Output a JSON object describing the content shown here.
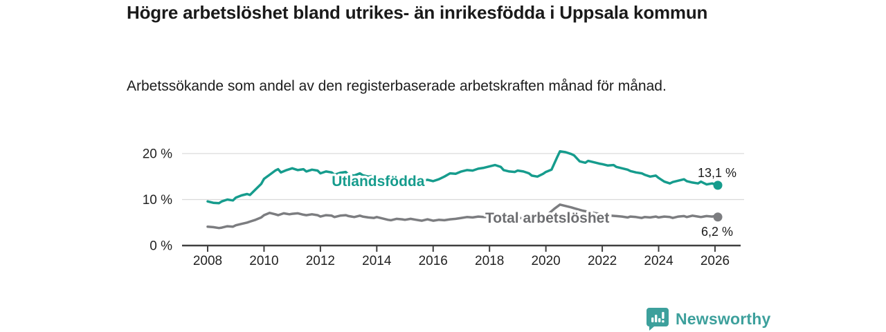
{
  "footer": {
    "brand": "Newsworthy"
  },
  "colors": {
    "accent_teal": "#169c8d",
    "line_gray": "#7c7d80",
    "label_gray": "#6d6e71",
    "brand_teal": "#3da09c",
    "axis": "#3f3f3f",
    "grid": "#d9d9d9",
    "text": "#1a1a1a"
  },
  "chart_data": {
    "type": "line",
    "title": "Högre arbetslöshet bland utrikes- än inrikesfödda i Uppsala kommun",
    "subtitle": "Arbetssökande som andel av den registerbaserade arbetskraften månad för månad.",
    "xlabel": "",
    "ylabel": "",
    "grid": "horizontal gridlines at 10% and 20%",
    "legend_position": "labels on lines",
    "x_range": [
      2007.1,
      2026.9
    ],
    "y_range": [
      0,
      21
    ],
    "x_ticks": [
      2008,
      2010,
      2012,
      2014,
      2016,
      2018,
      2020,
      2022,
      2024,
      2026
    ],
    "x_tick_labels": [
      "2008",
      "2010",
      "2012",
      "2014",
      "2016",
      "2018",
      "2020",
      "2022",
      "2024",
      "2026"
    ],
    "y_ticks": [
      0,
      10,
      20
    ],
    "y_tick_labels": [
      "0 %",
      "10 %",
      "20 %"
    ],
    "series": [
      {
        "name": "Utlandsfödda",
        "color": "#169c8d",
        "label_color": "#169c8d",
        "end_label": "13,1 %",
        "end_value": 13.1,
        "label_anchor": {
          "x": 2014.05,
          "y": 14.0
        },
        "points": [
          [
            2008.0,
            9.6
          ],
          [
            2008.2,
            9.3
          ],
          [
            2008.4,
            9.2
          ],
          [
            2008.5,
            9.6
          ],
          [
            2008.7,
            10.0
          ],
          [
            2008.9,
            9.8
          ],
          [
            2009.0,
            10.4
          ],
          [
            2009.2,
            10.9
          ],
          [
            2009.4,
            11.2
          ],
          [
            2009.5,
            11.0
          ],
          [
            2009.7,
            12.2
          ],
          [
            2009.9,
            13.4
          ],
          [
            2010.0,
            14.5
          ],
          [
            2010.2,
            15.4
          ],
          [
            2010.4,
            16.3
          ],
          [
            2010.5,
            16.6
          ],
          [
            2010.6,
            15.9
          ],
          [
            2010.8,
            16.4
          ],
          [
            2011.0,
            16.8
          ],
          [
            2011.2,
            16.4
          ],
          [
            2011.4,
            16.6
          ],
          [
            2011.5,
            16.1
          ],
          [
            2011.7,
            16.5
          ],
          [
            2011.9,
            16.3
          ],
          [
            2012.0,
            15.7
          ],
          [
            2012.2,
            16.1
          ],
          [
            2012.4,
            15.9
          ],
          [
            2012.5,
            15.4
          ],
          [
            2012.7,
            15.8
          ],
          [
            2012.9,
            16.0
          ],
          [
            2013.0,
            15.4
          ],
          [
            2013.2,
            15.2
          ],
          [
            2013.4,
            15.7
          ],
          [
            2013.5,
            15.3
          ],
          [
            2013.7,
            15.0
          ],
          [
            2013.9,
            15.2
          ],
          [
            2014.0,
            14.9
          ],
          [
            2014.2,
            14.5
          ],
          [
            2014.4,
            14.2
          ],
          [
            2014.5,
            13.9
          ],
          [
            2014.7,
            14.2
          ],
          [
            2014.9,
            14.4
          ],
          [
            2015.0,
            14.1
          ],
          [
            2015.2,
            14.4
          ],
          [
            2015.4,
            14.2
          ],
          [
            2015.6,
            14.0
          ],
          [
            2015.8,
            14.3
          ],
          [
            2016.0,
            14.0
          ],
          [
            2016.2,
            14.4
          ],
          [
            2016.4,
            15.0
          ],
          [
            2016.6,
            15.7
          ],
          [
            2016.8,
            15.6
          ],
          [
            2017.0,
            16.1
          ],
          [
            2017.2,
            16.4
          ],
          [
            2017.4,
            16.3
          ],
          [
            2017.6,
            16.7
          ],
          [
            2017.8,
            16.9
          ],
          [
            2018.0,
            17.2
          ],
          [
            2018.2,
            17.5
          ],
          [
            2018.4,
            17.1
          ],
          [
            2018.5,
            16.4
          ],
          [
            2018.7,
            16.1
          ],
          [
            2018.9,
            16.0
          ],
          [
            2019.0,
            16.3
          ],
          [
            2019.2,
            16.1
          ],
          [
            2019.4,
            15.7
          ],
          [
            2019.5,
            15.2
          ],
          [
            2019.7,
            15.0
          ],
          [
            2019.9,
            15.6
          ],
          [
            2020.0,
            16.0
          ],
          [
            2020.2,
            16.5
          ],
          [
            2020.4,
            19.2
          ],
          [
            2020.5,
            20.5
          ],
          [
            2020.7,
            20.3
          ],
          [
            2020.9,
            19.9
          ],
          [
            2021.0,
            19.6
          ],
          [
            2021.2,
            18.3
          ],
          [
            2021.4,
            18.0
          ],
          [
            2021.5,
            18.4
          ],
          [
            2021.7,
            18.1
          ],
          [
            2021.9,
            17.8
          ],
          [
            2022.0,
            17.7
          ],
          [
            2022.2,
            17.4
          ],
          [
            2022.4,
            17.5
          ],
          [
            2022.5,
            17.1
          ],
          [
            2022.7,
            16.8
          ],
          [
            2022.9,
            16.5
          ],
          [
            2023.0,
            16.2
          ],
          [
            2023.2,
            15.9
          ],
          [
            2023.4,
            15.7
          ],
          [
            2023.5,
            15.4
          ],
          [
            2023.7,
            15.0
          ],
          [
            2023.9,
            15.2
          ],
          [
            2024.0,
            14.7
          ],
          [
            2024.2,
            13.9
          ],
          [
            2024.4,
            13.5
          ],
          [
            2024.5,
            13.8
          ],
          [
            2024.7,
            14.1
          ],
          [
            2024.9,
            14.4
          ],
          [
            2025.0,
            14.0
          ],
          [
            2025.2,
            13.7
          ],
          [
            2025.4,
            13.5
          ],
          [
            2025.5,
            13.9
          ],
          [
            2025.7,
            13.3
          ],
          [
            2025.9,
            13.5
          ],
          [
            2026.0,
            13.3
          ],
          [
            2026.1,
            13.1
          ]
        ]
      },
      {
        "name": "Total arbetslöshet",
        "color": "#7c7d80",
        "label_color": "#6d6e71",
        "end_label": "6,2 %",
        "end_value": 6.2,
        "label_anchor": {
          "x": 2020.05,
          "y": 6.05
        },
        "points": [
          [
            2008.0,
            4.1
          ],
          [
            2008.2,
            4.0
          ],
          [
            2008.4,
            3.8
          ],
          [
            2008.5,
            3.9
          ],
          [
            2008.7,
            4.2
          ],
          [
            2008.9,
            4.1
          ],
          [
            2009.0,
            4.4
          ],
          [
            2009.2,
            4.7
          ],
          [
            2009.4,
            5.0
          ],
          [
            2009.5,
            5.2
          ],
          [
            2009.7,
            5.6
          ],
          [
            2009.9,
            6.1
          ],
          [
            2010.0,
            6.6
          ],
          [
            2010.2,
            7.1
          ],
          [
            2010.4,
            6.8
          ],
          [
            2010.5,
            6.6
          ],
          [
            2010.7,
            7.0
          ],
          [
            2010.9,
            6.8
          ],
          [
            2011.0,
            6.9
          ],
          [
            2011.2,
            7.0
          ],
          [
            2011.4,
            6.7
          ],
          [
            2011.5,
            6.6
          ],
          [
            2011.7,
            6.8
          ],
          [
            2011.9,
            6.6
          ],
          [
            2012.0,
            6.3
          ],
          [
            2012.2,
            6.6
          ],
          [
            2012.4,
            6.5
          ],
          [
            2012.5,
            6.2
          ],
          [
            2012.7,
            6.5
          ],
          [
            2012.9,
            6.6
          ],
          [
            2013.0,
            6.4
          ],
          [
            2013.2,
            6.2
          ],
          [
            2013.4,
            6.5
          ],
          [
            2013.5,
            6.3
          ],
          [
            2013.7,
            6.1
          ],
          [
            2013.9,
            6.0
          ],
          [
            2014.0,
            6.2
          ],
          [
            2014.2,
            5.9
          ],
          [
            2014.4,
            5.6
          ],
          [
            2014.5,
            5.5
          ],
          [
            2014.7,
            5.8
          ],
          [
            2014.9,
            5.7
          ],
          [
            2015.0,
            5.6
          ],
          [
            2015.2,
            5.8
          ],
          [
            2015.4,
            5.6
          ],
          [
            2015.6,
            5.4
          ],
          [
            2015.8,
            5.7
          ],
          [
            2016.0,
            5.4
          ],
          [
            2016.2,
            5.6
          ],
          [
            2016.4,
            5.5
          ],
          [
            2016.6,
            5.7
          ],
          [
            2016.8,
            5.8
          ],
          [
            2017.0,
            6.0
          ],
          [
            2017.2,
            6.2
          ],
          [
            2017.4,
            6.1
          ],
          [
            2017.6,
            6.3
          ],
          [
            2017.8,
            6.2
          ],
          [
            2018.0,
            6.2
          ],
          [
            2018.3,
            6.1
          ],
          [
            2018.6,
            6.0
          ],
          [
            2019.0,
            6.0
          ],
          [
            2019.4,
            5.9
          ],
          [
            2019.7,
            6.0
          ],
          [
            2020.0,
            6.4
          ],
          [
            2020.3,
            8.0
          ],
          [
            2020.5,
            8.9
          ],
          [
            2020.7,
            8.6
          ],
          [
            2020.9,
            8.3
          ],
          [
            2021.0,
            8.1
          ],
          [
            2021.3,
            7.6
          ],
          [
            2021.6,
            7.2
          ],
          [
            2021.9,
            6.9
          ],
          [
            2022.0,
            6.8
          ],
          [
            2022.3,
            6.5
          ],
          [
            2022.5,
            6.4
          ],
          [
            2022.7,
            6.3
          ],
          [
            2022.9,
            6.1
          ],
          [
            2023.0,
            6.3
          ],
          [
            2023.2,
            6.2
          ],
          [
            2023.4,
            6.0
          ],
          [
            2023.5,
            6.2
          ],
          [
            2023.7,
            6.1
          ],
          [
            2023.9,
            6.3
          ],
          [
            2024.0,
            6.1
          ],
          [
            2024.2,
            6.3
          ],
          [
            2024.4,
            6.2
          ],
          [
            2024.5,
            6.0
          ],
          [
            2024.7,
            6.3
          ],
          [
            2024.9,
            6.4
          ],
          [
            2025.0,
            6.2
          ],
          [
            2025.2,
            6.5
          ],
          [
            2025.4,
            6.3
          ],
          [
            2025.5,
            6.2
          ],
          [
            2025.7,
            6.4
          ],
          [
            2025.9,
            6.3
          ],
          [
            2026.0,
            6.4
          ],
          [
            2026.1,
            6.2
          ]
        ]
      }
    ]
  }
}
